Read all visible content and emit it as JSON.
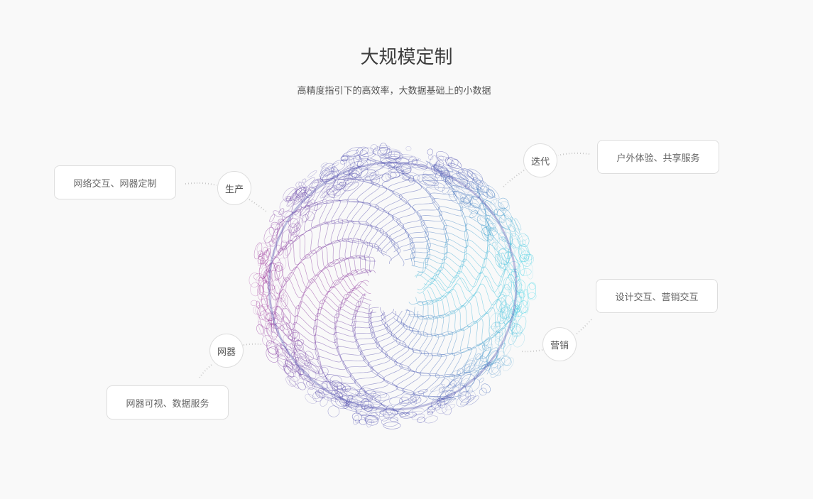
{
  "header": {
    "title": "大规模定制",
    "subtitle": "高精度指引下的高效率，大数据基础上的小数据"
  },
  "nodes": [
    {
      "label": "生产",
      "description": "网络交互、网器定制"
    },
    {
      "label": "迭代",
      "description": "户外体验、共享服务"
    },
    {
      "label": "营销",
      "description": "设计交互、营销交互"
    },
    {
      "label": "网器",
      "description": "网器可视、数据服务"
    }
  ],
  "colors": {
    "sphere_left": "#a0309a",
    "sphere_right": "#3fd6e6",
    "sphere_rim": "#4f4fb0",
    "connector": "#c8c8c8"
  }
}
